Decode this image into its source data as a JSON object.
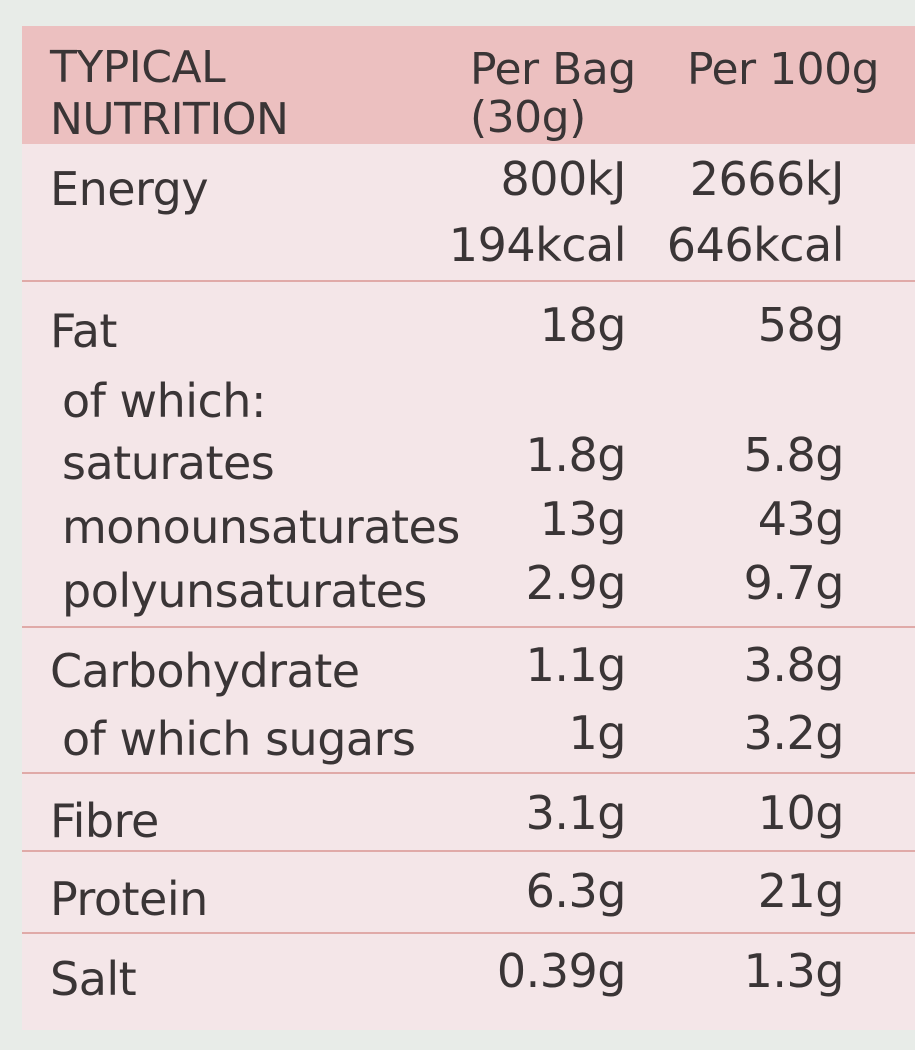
{
  "header": {
    "title_line1": "TYPICAL",
    "title_line2": "NUTRITION",
    "col1_line1": "Per Bag",
    "col1_line2": "(30g)",
    "col2": "Per 100g"
  },
  "rows": {
    "energy": {
      "label": "Energy",
      "per_bag_kj": "800kJ",
      "per_100g_kj": "2666kJ",
      "per_bag_kcal": "194kcal",
      "per_100g_kcal": "646kcal"
    },
    "fat": {
      "label": "Fat",
      "per_bag": "18g",
      "per_100g": "58g"
    },
    "of_which": {
      "label": "of which:"
    },
    "saturates": {
      "label": "saturates",
      "per_bag": "1.8g",
      "per_100g": "5.8g"
    },
    "monounsaturates": {
      "label": "monounsaturates",
      "per_bag": "13g",
      "per_100g": "43g"
    },
    "polyunsaturates": {
      "label": "polyunsaturates",
      "per_bag": "2.9g",
      "per_100g": "9.7g"
    },
    "carbohydrate": {
      "label": "Carbohydrate",
      "per_bag": "1.1g",
      "per_100g": "3.8g"
    },
    "sugars": {
      "label": "of which sugars",
      "per_bag": "1g",
      "per_100g": "3.2g"
    },
    "fibre": {
      "label": "Fibre",
      "per_bag": "3.1g",
      "per_100g": "10g"
    },
    "protein": {
      "label": "Protein",
      "per_bag": "6.3g",
      "per_100g": "21g"
    },
    "salt": {
      "label": "Salt",
      "per_bag": "0.39g",
      "per_100g": "1.3g"
    }
  },
  "colors": {
    "header_bg": "#ecc0c0",
    "body_bg": "#f4e6e8",
    "rule": "#e0aaa8",
    "text": "#3a3536"
  }
}
